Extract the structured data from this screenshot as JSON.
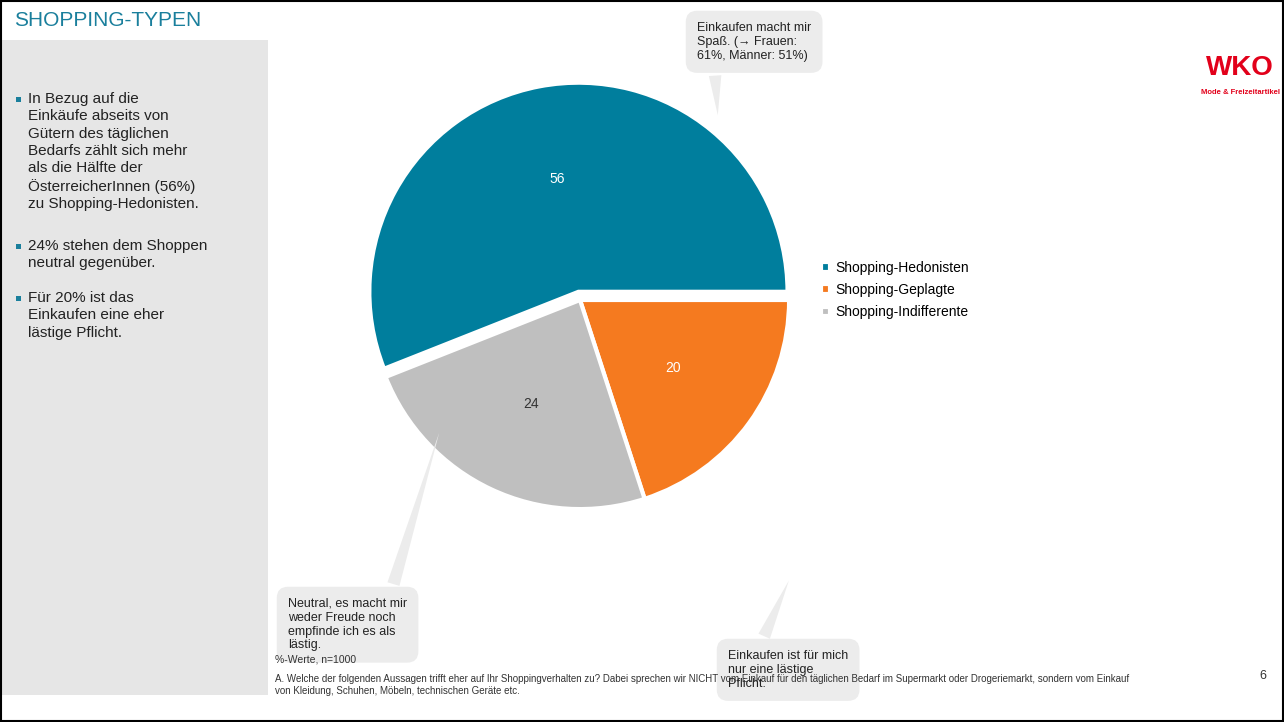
{
  "slide": {
    "title": "SHOPPING-TYPEN",
    "bullets": [
      "In Bezug auf die Einkäufe abseits von Gütern des täglichen Bedarfs zählt sich mehr als die Hälfte der ÖsterreicherInnen (56%) zu Shopping-Hedonisten.",
      "24% stehen dem Shoppen neutral gegenüber.",
      "Für 20% ist das Einkaufen eine eher lästige Pflicht."
    ],
    "footnotes": [
      "%-Werte, n=1000",
      "A. Welche der folgenden Aussagen trifft eher auf Ihr Shoppingverhalten zu? Dabei sprechen wir NICHT vom Einkauf für den täglichen Bedarf im Supermarkt oder Drogeriemarkt, sondern vom Einkauf von Kleidung, Schuhen, Möbeln, technischen Geräte etc."
    ],
    "page": 6,
    "logo": "WKO",
    "logo_subtitle": "Mode & Freizeitartikel"
  },
  "chart_data": {
    "type": "pie",
    "categories": [
      "Shopping-Hedonisten",
      "Shopping-Geplagte",
      "Shopping-Indifferente"
    ],
    "values": [
      56,
      20,
      24
    ],
    "colors": [
      "#007e9d",
      "#f57a1f",
      "#bfbfbf"
    ],
    "data_labels": true,
    "legend": "center left",
    "annotations": [
      "Einkaufen macht mir Spaß. (→ Frauen: 61%, Männer: 51%)",
      "Einkaufen ist für mich nur eine lästige Pflicht.",
      "Neutral, es macht mir weder Freude noch empfinde ich es als lästig."
    ]
  }
}
